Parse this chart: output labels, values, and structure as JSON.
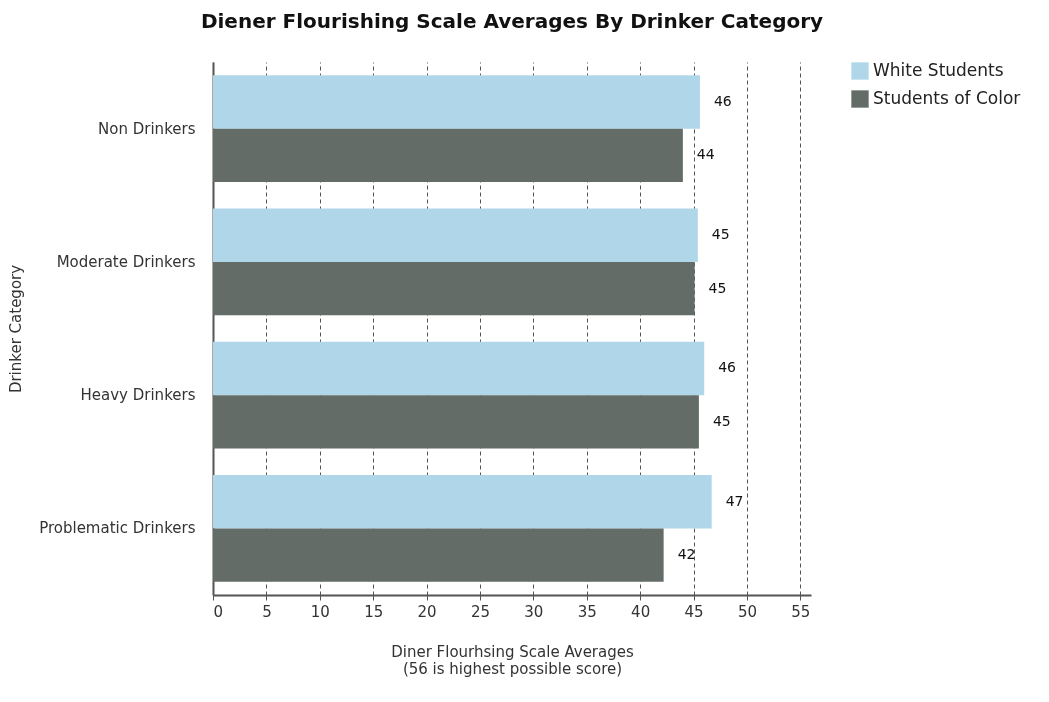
{
  "chart_data": {
    "type": "bar",
    "orientation": "horizontal",
    "title": "Diener Flourishing Scale Averages By Drinker Category",
    "xlabel": "Diner Flourhsing Scale Averages\n(56 is highest possible score)",
    "ylabel": "Drinker Category",
    "categories": [
      "Non Drinkers",
      "Moderate Drinkers",
      "Heavy Drinkers",
      "Problematic Drinkers"
    ],
    "series": [
      {
        "name": "White Students",
        "color": "#afd6e9",
        "values": [
          45.6,
          45.4,
          46.0,
          46.7
        ],
        "value_labels": [
          "46",
          "45",
          "46",
          "47"
        ]
      },
      {
        "name": "Students of Color",
        "color": "#636c66",
        "values": [
          44.0,
          45.1,
          45.5,
          42.2
        ],
        "value_labels": [
          "44",
          "45",
          "45",
          "42"
        ]
      }
    ],
    "xlim": [
      0,
      56
    ],
    "xticks": [
      0,
      5,
      10,
      15,
      20,
      25,
      30,
      35,
      40,
      45,
      50,
      55
    ],
    "grid": "x",
    "legend": "top right"
  }
}
